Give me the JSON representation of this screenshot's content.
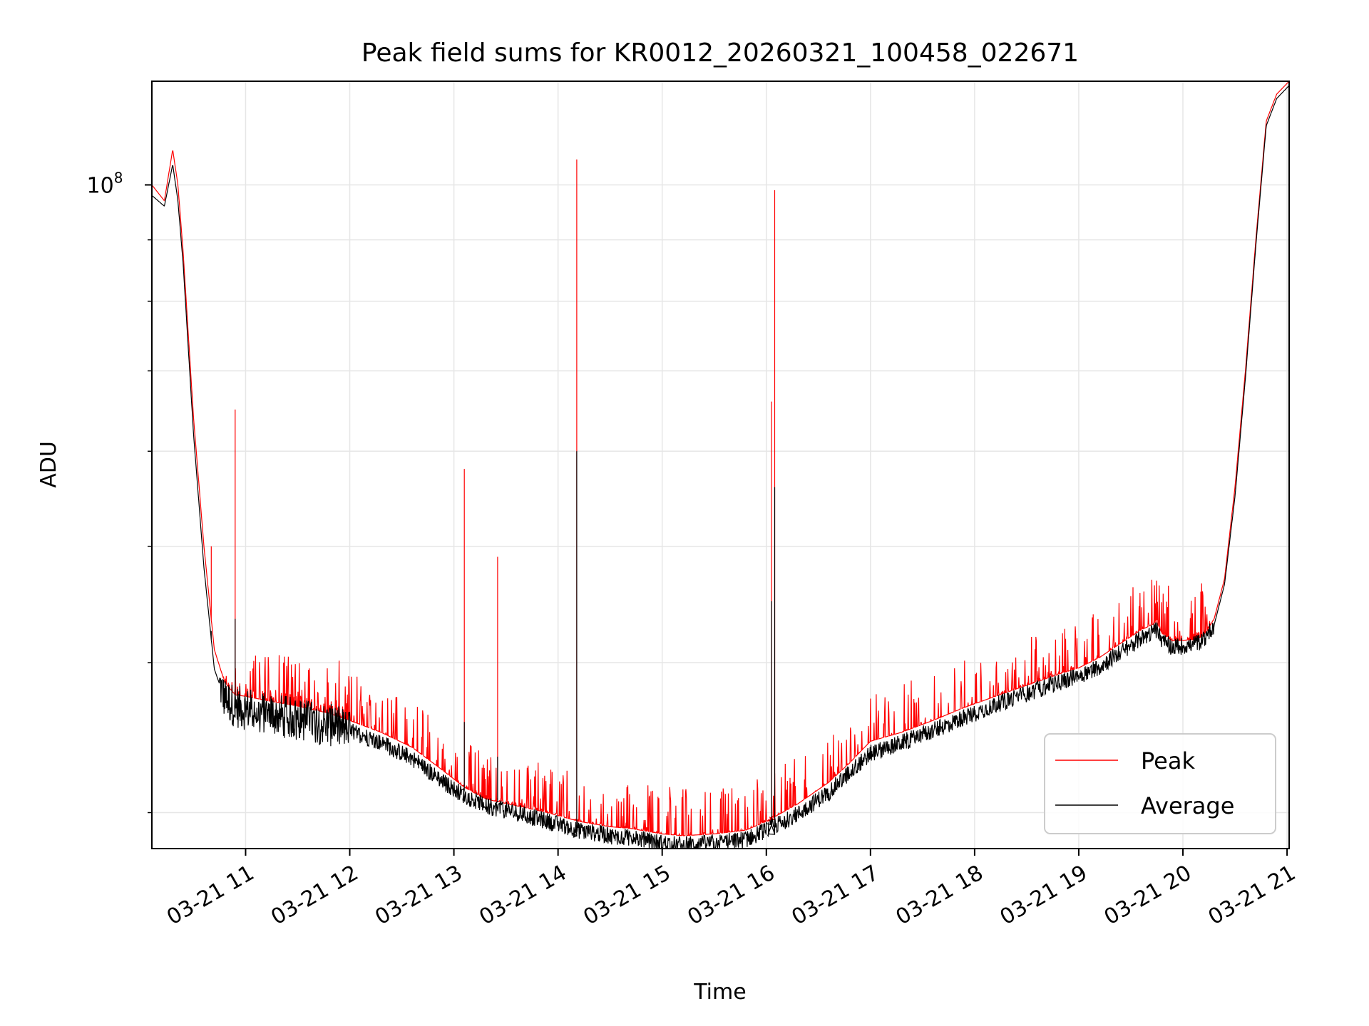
{
  "chart_data": {
    "type": "line",
    "title": "Peak field sums for KR0012_20260321_100458_022671",
    "xlabel": "Time",
    "ylabel": "ADU",
    "y_scale": "log",
    "grid": true,
    "legend_position": "lower-right",
    "x_ticks": [
      "03-21 11",
      "03-21 12",
      "03-21 13",
      "03-21 14",
      "03-21 15",
      "03-21 16",
      "03-21 17",
      "03-21 18",
      "03-21 19",
      "03-21 20",
      "03-21 21"
    ],
    "y_major_tick": {
      "value": 100000000,
      "label": "10^8"
    },
    "xlim_hours": [
      10.1,
      21.02
    ],
    "ylim": [
      28000000,
      122000000
    ],
    "x_hours": [
      10.1,
      10.22,
      10.3,
      10.35,
      10.4,
      10.5,
      10.6,
      10.7,
      10.8,
      10.9,
      11.0,
      11.2,
      11.5,
      11.8,
      12.0,
      12.3,
      12.6,
      12.9,
      13.1,
      13.3,
      13.6,
      13.9,
      14.2,
      14.5,
      14.7,
      14.9,
      15.0,
      15.2,
      15.5,
      15.8,
      16.0,
      16.3,
      16.6,
      16.8,
      16.9,
      17.0,
      17.3,
      17.6,
      17.9,
      18.2,
      18.5,
      18.8,
      19.0,
      19.2,
      19.4,
      19.6,
      19.75,
      19.8,
      19.9,
      20.1,
      20.2,
      20.3,
      20.4,
      20.5,
      20.6,
      20.7,
      20.8,
      20.9,
      21.02
    ],
    "series": [
      {
        "name": "Peak",
        "color": "#ff0000",
        "values": [
          100000000,
          97000000,
          107000000,
          100000000,
          88000000,
          64000000,
          50000000,
          41000000,
          38500000,
          37600000,
          37500000,
          37200000,
          36800000,
          36300000,
          35800000,
          35000000,
          34000000,
          32500000,
          31500000,
          30800000,
          30400000,
          30000000,
          29500000,
          29200000,
          29100000,
          28900000,
          28800000,
          28700000,
          28800000,
          29000000,
          29500000,
          30500000,
          31800000,
          33000000,
          33700000,
          34400000,
          35000000,
          35800000,
          36700000,
          37500000,
          38300000,
          39100000,
          39600000,
          40400000,
          41500000,
          42600000,
          43200000,
          42300000,
          41700000,
          41800000,
          42100000,
          43500000,
          47000000,
          56000000,
          70000000,
          90000000,
          113000000,
          119000000,
          122000000
        ]
      },
      {
        "name": "Average",
        "color": "#000000",
        "values": [
          98000000,
          96000000,
          104000000,
          97000000,
          86000000,
          62000000,
          48000000,
          39500000,
          37300000,
          36800000,
          36600000,
          36300000,
          35900000,
          35500000,
          35100000,
          34300000,
          33300000,
          31800000,
          31000000,
          30400000,
          30000000,
          29500000,
          29000000,
          28700000,
          28600000,
          28400000,
          28300000,
          28200000,
          28300000,
          28500000,
          29000000,
          29900000,
          31200000,
          32400000,
          33000000,
          33600000,
          34300000,
          35100000,
          36000000,
          36900000,
          37700000,
          38500000,
          39000000,
          39700000,
          40800000,
          41900000,
          42600000,
          41700000,
          41200000,
          41400000,
          41800000,
          43000000,
          46500000,
          55000000,
          69000000,
          89000000,
          112000000,
          118000000,
          121000000
        ]
      }
    ],
    "spikes": [
      {
        "x": 10.67,
        "peak": 50000000,
        "average": 42500000
      },
      {
        "x": 10.9,
        "peak": 65000000,
        "average": 43500000
      },
      {
        "x": 13.1,
        "peak": 58000000,
        "average": 35700000
      },
      {
        "x": 13.42,
        "peak": 49000000,
        "average": 33400000
      },
      {
        "x": 14.18,
        "peak": 105000000,
        "average": 60000000
      },
      {
        "x": 16.05,
        "peak": 66000000,
        "average": 45000000
      },
      {
        "x": 16.08,
        "peak": 99000000,
        "average": 56000000
      }
    ]
  }
}
